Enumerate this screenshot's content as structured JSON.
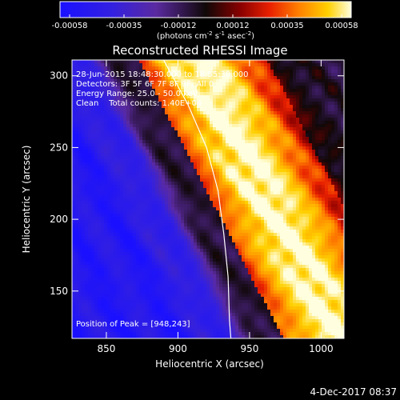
{
  "chart_data": {
    "type": "heatmap",
    "title": "Reconstructed RHESSI Image",
    "xlabel": "Heliocentric X (arcsec)",
    "ylabel": "Heliocentric Y (arcsec)",
    "xlim": [
      826,
      1016
    ],
    "ylim": [
      117,
      311
    ],
    "xticks": [
      850,
      900,
      950,
      1000
    ],
    "yticks": [
      150,
      200,
      250,
      300
    ],
    "colorbar": {
      "ticks": [
        "-0.00058",
        "-0.00035",
        "-0.00012",
        "0.00012",
        "0.00035",
        "0.00058"
      ],
      "label_main": "(photons cm",
      "label_exp1": "-2",
      "label_mid": " s",
      "label_exp2": "-1",
      "label_end": " asec",
      "label_exp3": "-2",
      "label_close": ")",
      "range": [
        -0.00058,
        0.00058
      ]
    },
    "annotations": [
      "28-Jun-2015 18:48:30.000 to 18:55:30.000",
      "Detectors: 3F 5F 6F 7F 8F 9F, All 0",
      "Energy Range: 25.0 - 50.0 keV",
      "Clean    Total counts: 1.40E+04"
    ],
    "peak_text": "Position of Peak = [948,243]",
    "peak": [
      948,
      243
    ],
    "limb_points": [
      [
        890,
        311
      ],
      [
        907,
        280
      ],
      [
        920,
        250
      ],
      [
        928,
        220
      ],
      [
        932,
        190
      ],
      [
        935,
        160
      ],
      [
        936,
        130
      ],
      [
        937,
        117
      ]
    ],
    "date_stamp": "4-Dec-2017 08:37"
  }
}
